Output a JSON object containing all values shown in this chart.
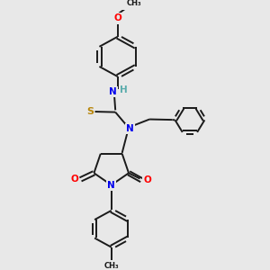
{
  "bg_color": "#e8e8e8",
  "bond_color": "#1a1a1a",
  "N_color": "#0000ee",
  "O_color": "#ff0000",
  "S_color": "#b8860b",
  "H_color": "#5aacac",
  "fig_width": 3.0,
  "fig_height": 3.0,
  "dpi": 100,
  "lw": 1.4,
  "fs": 7.5,
  "xlim": [
    0,
    10
  ],
  "ylim": [
    0,
    10
  ]
}
